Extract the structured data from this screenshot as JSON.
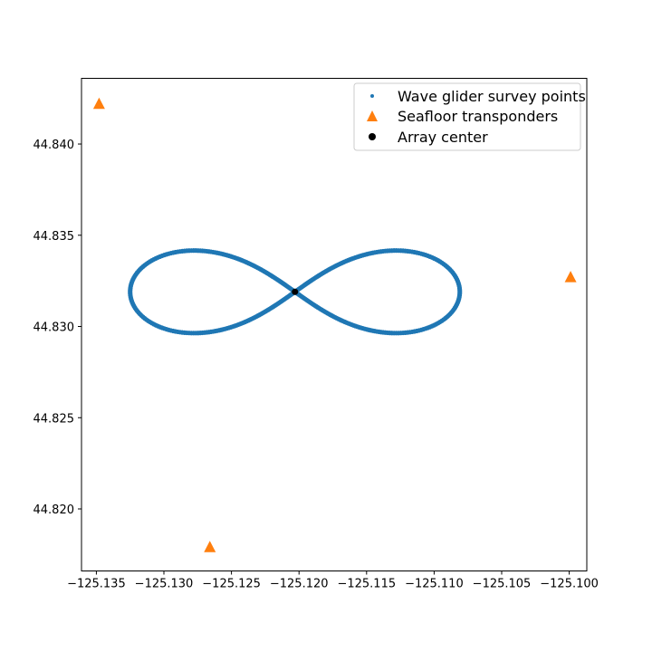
{
  "chart_data": {
    "type": "scatter",
    "title": "",
    "xlabel": "",
    "ylabel": "",
    "xlim": [
      -125.1361,
      -125.0987
    ],
    "ylim": [
      44.8166,
      44.8436
    ],
    "xticks": [
      "−125.135",
      "−125.130",
      "−125.125",
      "−125.120",
      "−125.115",
      "−125.110",
      "−125.105",
      "−125.100"
    ],
    "xtick_values": [
      -125.135,
      -125.13,
      -125.125,
      -125.12,
      -125.115,
      -125.11,
      -125.105,
      -125.1
    ],
    "yticks": [
      "44.820",
      "44.825",
      "44.830",
      "44.835",
      "44.840"
    ],
    "ytick_values": [
      44.82,
      44.825,
      44.83,
      44.835,
      44.84
    ],
    "grid": false,
    "legend_position": "top-right",
    "series": [
      {
        "name": "Wave glider survey points",
        "marker": "dot",
        "color": "#1f77b4",
        "shape": "figure-eight (lemniscate)",
        "center": [
          -125.1203,
          44.8319
        ],
        "x_half_width": 0.0122,
        "y_half_height": 0.0032,
        "points": 400
      },
      {
        "name": "Seafloor transponders",
        "marker": "triangle",
        "color": "#ff7f0e",
        "x": [
          -125.1348,
          -125.0999,
          -125.1266
        ],
        "y": [
          44.8422,
          44.8327,
          44.8179
        ]
      },
      {
        "name": "Array center",
        "marker": "circle",
        "color": "#000000",
        "x": [
          -125.1203
        ],
        "y": [
          44.8319
        ]
      }
    ]
  }
}
